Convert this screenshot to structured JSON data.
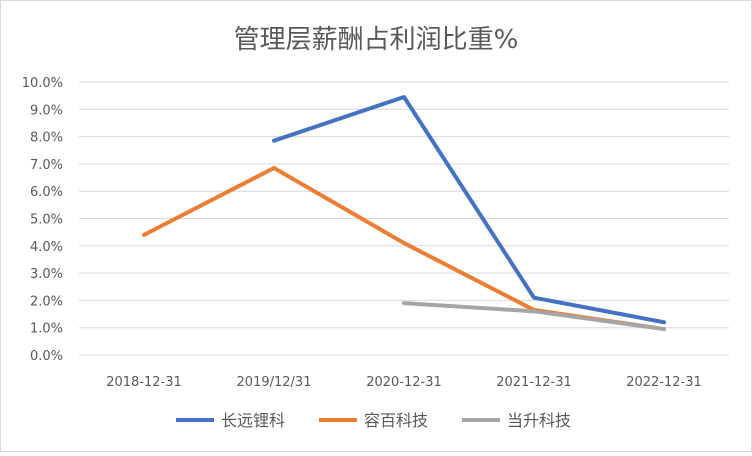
{
  "chart_data": {
    "type": "line",
    "title": "管理层薪酬占利润比重%",
    "categories": [
      "2018-12-31",
      "2019/12/31",
      "2020-12-31",
      "2021-12-31",
      "2022-12-31"
    ],
    "y_ticks": [
      "0.0%",
      "1.0%",
      "2.0%",
      "3.0%",
      "4.0%",
      "5.0%",
      "6.0%",
      "7.0%",
      "8.0%",
      "9.0%",
      "10.0%"
    ],
    "ylim": [
      0,
      10
    ],
    "grid": true,
    "legend_position": "bottom",
    "series": [
      {
        "name": "长远锂科",
        "color": "#4472C4",
        "values": [
          null,
          7.85,
          9.45,
          2.1,
          1.2
        ]
      },
      {
        "name": "容百科技",
        "color": "#ED7D31",
        "values": [
          4.4,
          6.85,
          4.1,
          1.65,
          0.95
        ]
      },
      {
        "name": "当升科技",
        "color": "#A5A5A5",
        "values": [
          null,
          null,
          1.9,
          1.6,
          0.95
        ]
      }
    ]
  }
}
